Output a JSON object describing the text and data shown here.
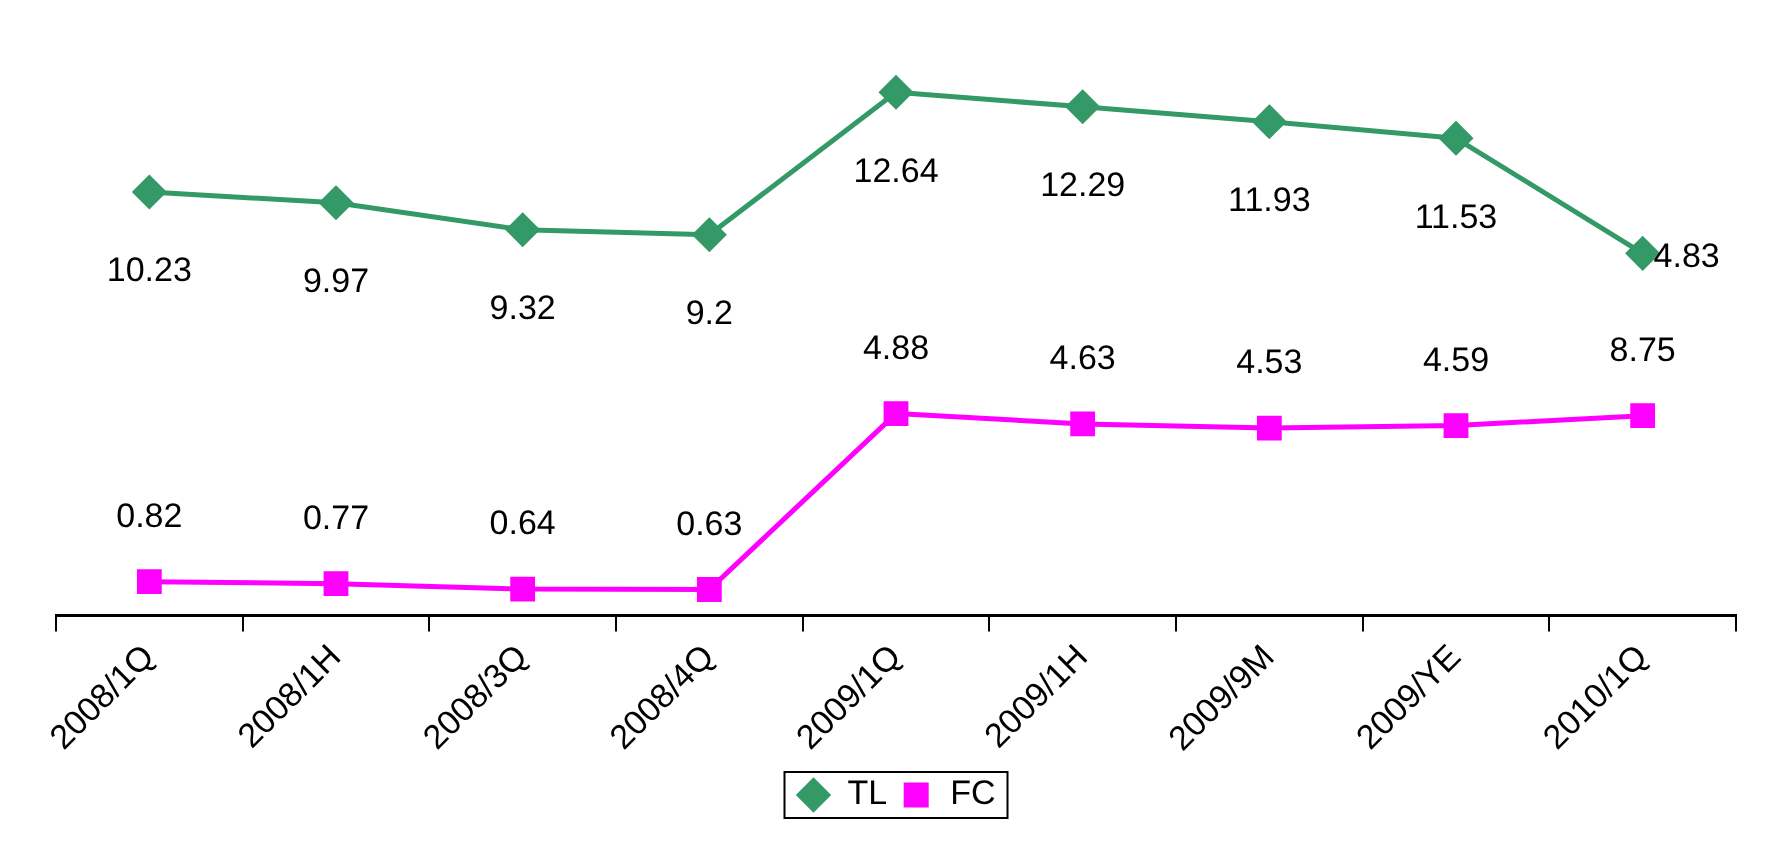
{
  "chart_data": {
    "type": "line",
    "categories": [
      "2008/1Q",
      "2008/1H",
      "2008/3Q",
      "2008/4Q",
      "2009/1Q",
      "2009/1H",
      "2009/9M",
      "2009/YE",
      "2010/1Q"
    ],
    "series": [
      {
        "name": "TL",
        "color": "#339966",
        "marker": "diamond",
        "values": [
          10.23,
          9.97,
          9.32,
          9.2,
          12.64,
          12.29,
          11.93,
          11.53,
          8.75
        ],
        "value_labels": [
          "10.23",
          "9.97",
          "9.32",
          "9.2",
          "12.64",
          "12.29",
          "11.93",
          "11.53",
          null
        ]
      },
      {
        "name": "FC",
        "color": "#ff00ff",
        "marker": "square",
        "values": [
          0.82,
          0.77,
          0.64,
          0.63,
          4.88,
          4.63,
          4.53,
          4.59,
          4.83
        ],
        "value_labels": [
          "0.82",
          "0.77",
          "0.64",
          "0.63",
          "4.88",
          "4.63",
          "4.53",
          "4.59",
          null
        ]
      }
    ],
    "annotations": [
      {
        "text": "4.83",
        "x": "2010/1Q",
        "y": 8.75
      },
      {
        "text": "8.75",
        "x": "2010/1Q",
        "y": 4.83
      }
    ],
    "tick_labels": "x",
    "grid": false,
    "legend": "bottom"
  }
}
